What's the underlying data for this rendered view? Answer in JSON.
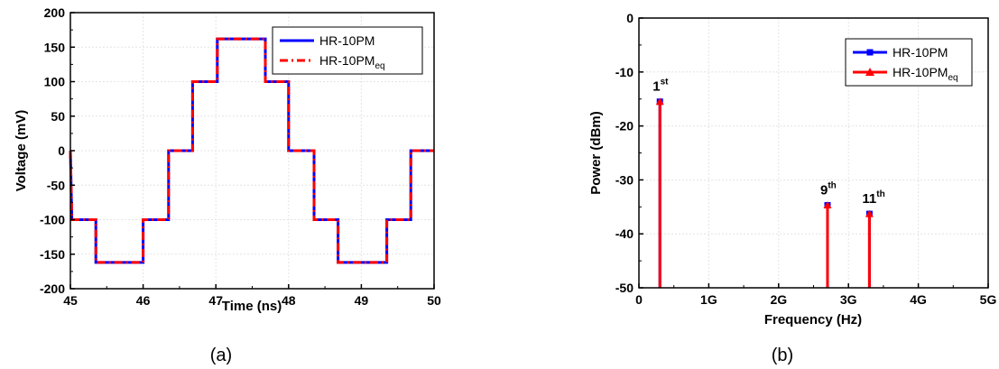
{
  "chart_data": [
    {
      "type": "line",
      "caption": "(a)",
      "xlabel": "Time (ns)",
      "ylabel": "Voltage (mV)",
      "xlim": [
        45,
        50
      ],
      "ylim": [
        -200,
        200
      ],
      "x_ticks": [
        45,
        46,
        47,
        48,
        49,
        50
      ],
      "y_ticks": [
        200,
        150,
        100,
        50,
        0,
        -50,
        -100,
        -150,
        -200
      ],
      "grid": true,
      "legend_position": "top-right",
      "series": [
        {
          "name": "HR-10PM",
          "name_sub": "",
          "color": "#0000ff",
          "style": "solid",
          "x": [
            45.0,
            45.02,
            45.35,
            45.35,
            46.0,
            46.0,
            46.35,
            46.35,
            46.68,
            46.68,
            47.02,
            47.02,
            47.68,
            47.68,
            48.0,
            48.0,
            48.35,
            48.35,
            48.68,
            48.68,
            49.35,
            49.35,
            49.68,
            49.68,
            50.0
          ],
          "y": [
            0,
            -100,
            -100,
            -162,
            -162,
            -100,
            -100,
            0,
            0,
            100,
            100,
            162,
            162,
            100,
            100,
            0,
            0,
            -100,
            -100,
            -162,
            -162,
            -100,
            -100,
            0,
            0
          ]
        },
        {
          "name": "HR-10PM",
          "name_sub": "eq",
          "color": "#ff0000",
          "style": "dashdot",
          "x": [
            45.0,
            45.02,
            45.35,
            45.35,
            46.0,
            46.0,
            46.35,
            46.35,
            46.68,
            46.68,
            47.02,
            47.02,
            47.68,
            47.68,
            48.0,
            48.0,
            48.35,
            48.35,
            48.68,
            48.68,
            49.35,
            49.35,
            49.68,
            49.68,
            50.0
          ],
          "y": [
            0,
            -100,
            -100,
            -162,
            -162,
            -100,
            -100,
            0,
            0,
            100,
            100,
            162,
            162,
            100,
            100,
            0,
            0,
            -100,
            -100,
            -162,
            -162,
            -100,
            -100,
            0,
            0
          ]
        }
      ]
    },
    {
      "type": "line",
      "caption": "(b)",
      "xlabel": "Frequency (Hz)",
      "ylabel": "Power (dBm)",
      "xlim": [
        0,
        5
      ],
      "ylim": [
        -50,
        0
      ],
      "x_ticks": [
        0,
        1,
        2,
        3,
        4,
        5
      ],
      "x_tick_labels": [
        "0",
        "1G",
        "2G",
        "3G",
        "4G",
        "5G"
      ],
      "y_ticks": [
        0,
        -10,
        -20,
        -30,
        -40,
        -50
      ],
      "grid": true,
      "legend_position": "top-right",
      "series": [
        {
          "name": "HR-10PM",
          "name_sub": "",
          "color": "#0000ff",
          "marker": "square",
          "x": [
            0.3,
            2.7,
            3.3
          ],
          "y": [
            -15.5,
            -34.7,
            -36.3
          ]
        },
        {
          "name": "HR-10PM",
          "name_sub": "eq",
          "color": "#ff0000",
          "marker": "triangle",
          "x": [
            0.3,
            2.7,
            3.3
          ],
          "y": [
            -15.5,
            -34.7,
            -36.3
          ]
        }
      ],
      "annotations": [
        {
          "text": "1",
          "sup": "st",
          "x": 0.3,
          "y": -15.5
        },
        {
          "text": "9",
          "sup": "th",
          "x": 2.7,
          "y": -34.7
        },
        {
          "text": "11",
          "sup": "th",
          "x": 3.3,
          "y": -36.3
        }
      ]
    }
  ]
}
